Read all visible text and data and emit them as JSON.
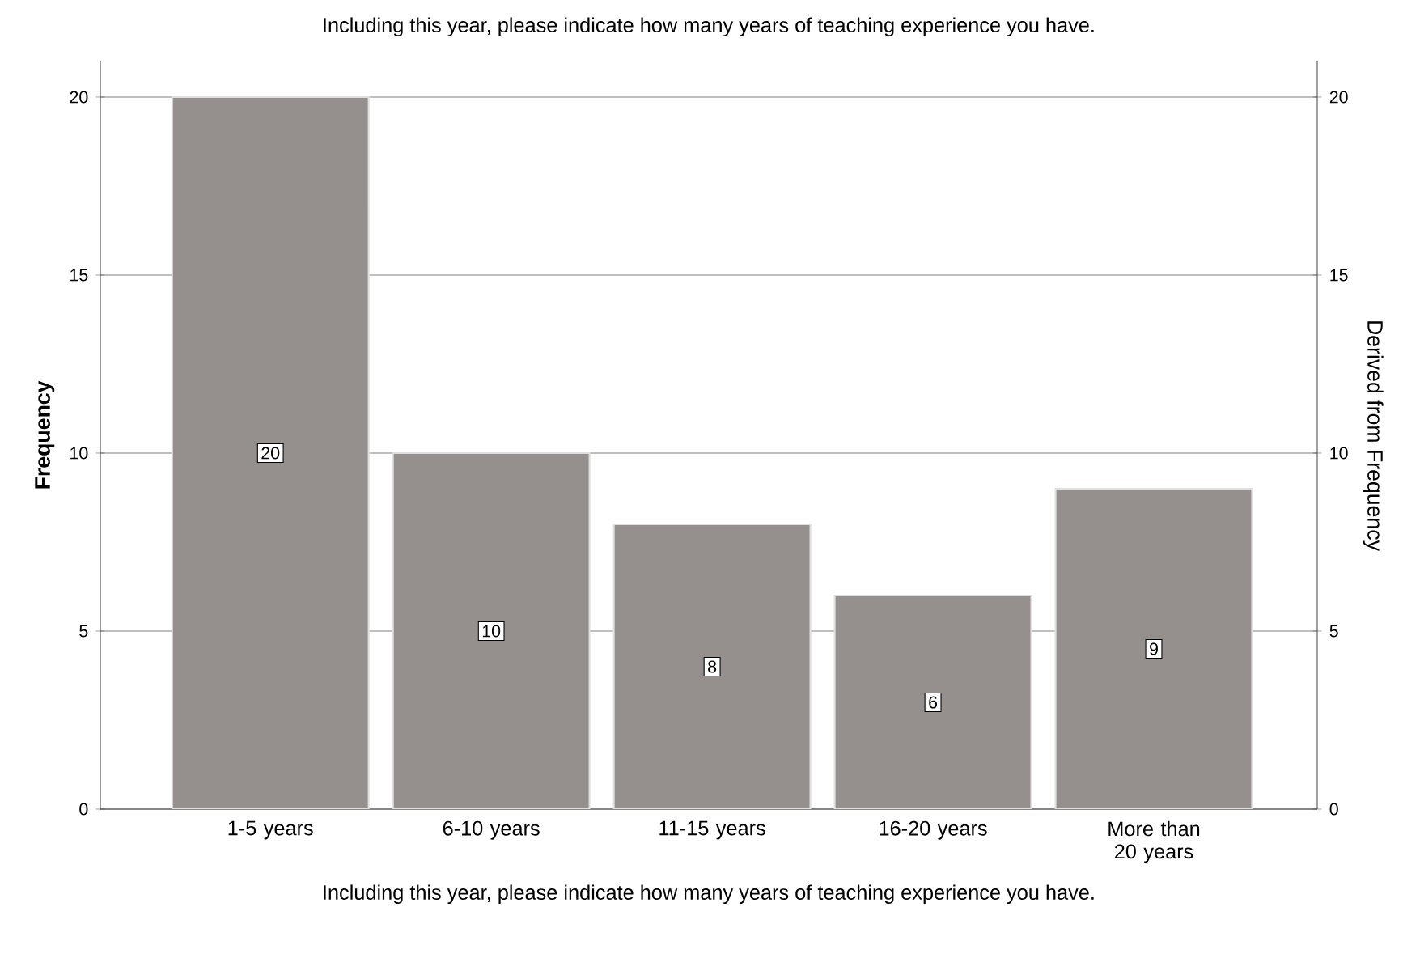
{
  "chart_data": {
    "type": "bar",
    "title": "Including this year, please indicate how many years of teaching experience you have.",
    "xlabel": "Including this year, please indicate how many years of teaching experience you have.",
    "ylabel": "Frequency",
    "y2label": "Derived from Frequency",
    "categories": [
      "1-5 years",
      "6-10 years",
      "11-15 years",
      "16-20 years",
      "More than 20 years"
    ],
    "values": [
      20,
      10,
      8,
      6,
      9
    ],
    "color": "#958f8d",
    "ylim": [
      0,
      21
    ],
    "yticks": [
      0,
      5,
      10,
      15,
      20
    ],
    "y2lim": [
      0,
      21
    ],
    "y2ticks": [
      0,
      5,
      10,
      15,
      20
    ],
    "grid": "y",
    "data_labels": true
  }
}
